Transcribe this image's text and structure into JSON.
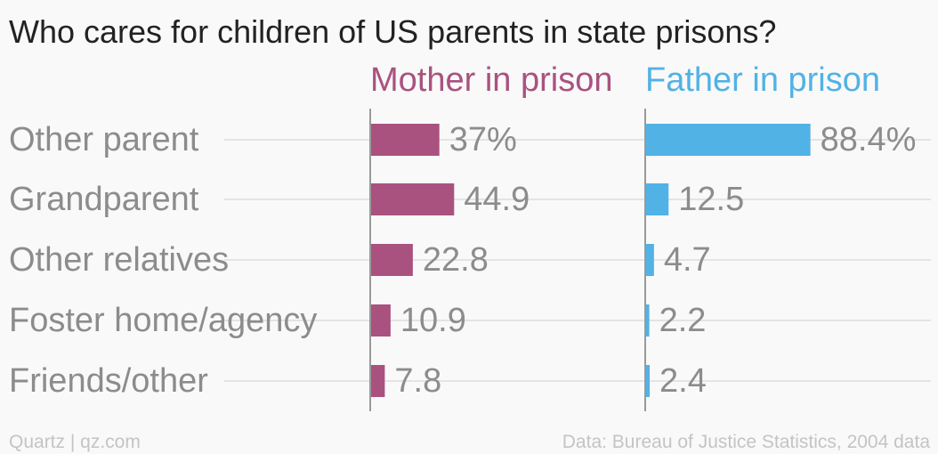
{
  "chart_data": {
    "type": "bar",
    "orientation": "horizontal",
    "title": "Who cares for children of US parents in state prisons?",
    "categories": [
      "Other parent",
      "Grandparent",
      "Other relatives",
      "Foster home/agency",
      "Friends/other"
    ],
    "series": [
      {
        "name": "Mother in prison",
        "color": "#a9527f",
        "values": [
          37,
          44.9,
          22.8,
          10.9,
          7.8
        ],
        "labels": [
          "37%",
          "44.9",
          "22.8",
          "10.9",
          "7.8"
        ]
      },
      {
        "name": "Father in prison",
        "color": "#51b2e5",
        "values": [
          88.4,
          12.5,
          4.7,
          2.2,
          2.4
        ],
        "labels": [
          "88.4%",
          "12.5",
          "4.7",
          "2.2",
          "2.4"
        ]
      }
    ],
    "xlim": [
      0,
      100
    ],
    "grid": true,
    "legend": "panel titles above each panel"
  },
  "footer": {
    "source_left": "Quartz | qz.com",
    "source_right": "Data: Bureau of Justice Statistics, 2004 data"
  },
  "colors": {
    "background": "#f9f9f9",
    "title": "#222222",
    "label": "#8c8c8c",
    "footer": "#c4c4c4",
    "grid": "#e4e4e4",
    "axis": "#9a9a9a"
  }
}
